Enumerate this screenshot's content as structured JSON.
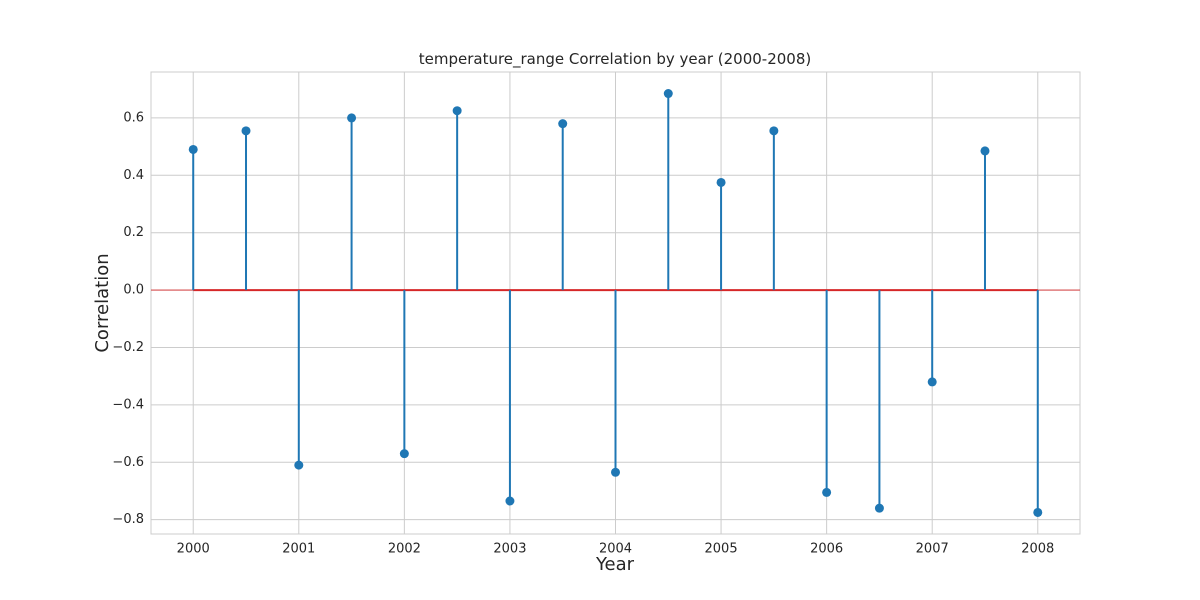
{
  "chart_data": {
    "type": "stem",
    "title": "temperature_range Correlation by year (2000-2008)",
    "xlabel": "Year",
    "ylabel": "Correlation",
    "xlim": [
      1999.6,
      2008.4
    ],
    "ylim": [
      -0.85,
      0.76
    ],
    "xticks": [
      2000,
      2001,
      2002,
      2003,
      2004,
      2005,
      2006,
      2007,
      2008
    ],
    "yticks": [
      -0.8,
      -0.6,
      -0.4,
      -0.2,
      0.0,
      0.2,
      0.4,
      0.6
    ],
    "ytick_labels": [
      "−0.8",
      "−0.6",
      "−0.4",
      "−0.2",
      "0.0",
      "0.2",
      "0.4",
      "0.6"
    ],
    "grid": true,
    "baseline": 0,
    "points": [
      {
        "x": 2000.0,
        "y": 0.49
      },
      {
        "x": 2000.5,
        "y": 0.555
      },
      {
        "x": 2001.0,
        "y": -0.61
      },
      {
        "x": 2001.5,
        "y": 0.6
      },
      {
        "x": 2002.0,
        "y": -0.57
      },
      {
        "x": 2002.5,
        "y": 0.625
      },
      {
        "x": 2003.0,
        "y": -0.735
      },
      {
        "x": 2003.5,
        "y": 0.58
      },
      {
        "x": 2004.0,
        "y": -0.635
      },
      {
        "x": 2004.5,
        "y": 0.685
      },
      {
        "x": 2005.0,
        "y": 0.375
      },
      {
        "x": 2005.5,
        "y": 0.555
      },
      {
        "x": 2006.0,
        "y": -0.705
      },
      {
        "x": 2006.5,
        "y": -0.76
      },
      {
        "x": 2007.0,
        "y": -0.32
      },
      {
        "x": 2007.5,
        "y": 0.485
      },
      {
        "x": 2008.0,
        "y": -0.775
      }
    ],
    "colors": {
      "stem": "#1f77b4",
      "marker": "#1f77b4",
      "baseline": "#d62728",
      "grid": "#cccccc",
      "frame": "#cccccc"
    }
  }
}
